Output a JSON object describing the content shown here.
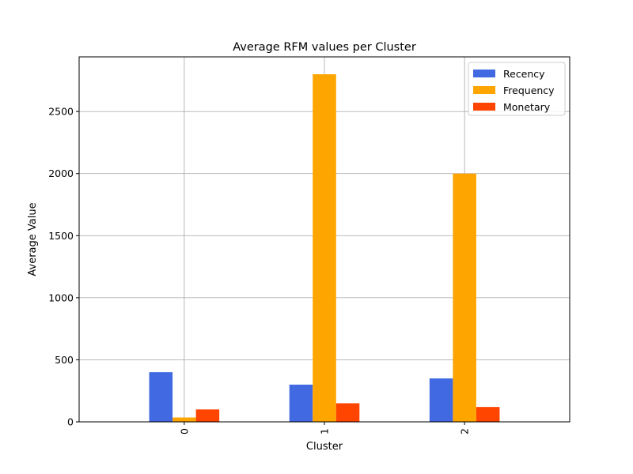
{
  "chart_data": {
    "type": "bar",
    "title": "Average RFM values per Cluster",
    "xlabel": "Cluster",
    "ylabel": "Average Value",
    "categories": [
      "0",
      "1",
      "2"
    ],
    "series": [
      {
        "name": "Recency",
        "color": "#4169e1",
        "values": [
          400,
          300,
          350
        ]
      },
      {
        "name": "Frequency",
        "color": "#ffa500",
        "values": [
          35,
          2800,
          2000
        ]
      },
      {
        "name": "Monetary",
        "color": "#ff4500",
        "values": [
          100,
          150,
          120
        ]
      }
    ],
    "ylim": [
      0,
      2940
    ],
    "yticks": [
      0,
      500,
      1000,
      1500,
      2000,
      2500
    ],
    "grid": true,
    "legend_position": "top-right"
  }
}
